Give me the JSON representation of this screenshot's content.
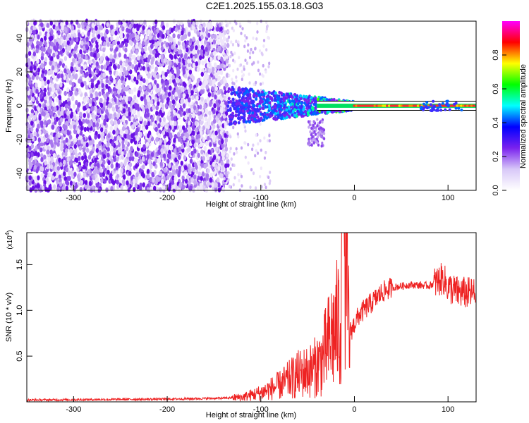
{
  "title": "C2E1.2025.155.03.18.G03",
  "colors": {
    "snr_line": "#ee2222",
    "spectrum_dot": "#7a22ee",
    "center_line": "#000000",
    "colorbar_stops": [
      "#ffffff",
      "#d8c8f8",
      "#7a22ee",
      "#0000ff",
      "#00ffff",
      "#00ff00",
      "#ffff00",
      "#ff0000",
      "#ff00ff"
    ]
  },
  "chart_data": [
    {
      "type": "heatmap",
      "name": "spectrogram",
      "xlabel": "Height of straight line (km)",
      "ylabel": "Frequency (Hz)",
      "xlim": [
        -350,
        130
      ],
      "ylim": [
        -50,
        50
      ],
      "xticks": [
        -300,
        -200,
        -100,
        0,
        100
      ],
      "yticks": [
        -40,
        -20,
        0,
        20,
        40
      ],
      "colorbar_label": "Normalized spectral amplitude",
      "colorbar_ticks": [
        "0.0",
        "0.2",
        "0.4",
        "0.6",
        "0.8"
      ],
      "colorbar_range": [
        0,
        1
      ],
      "grid": false
    },
    {
      "type": "line",
      "name": "snr",
      "xlabel": "Height of straight line (km)",
      "ylabel": "SNR (10 * v/v)",
      "exponent_label": "(x10",
      "exponent_power": "4",
      "exponent_close": ")",
      "xlim": [
        -350,
        130
      ],
      "ylim": [
        0,
        1.85
      ],
      "xticks": [
        -300,
        -200,
        -100,
        0,
        100
      ],
      "yticks": [
        0.5,
        1.0,
        1.5
      ],
      "ytick_labels": [
        "0.5",
        "1.0",
        "1.5"
      ],
      "grid": false,
      "series": [
        {
          "x": [
            -350,
            -200,
            -140,
            -120,
            -100,
            -80,
            -60,
            -45,
            -35,
            -25,
            -15,
            -12,
            -5,
            0,
            5,
            15,
            25,
            30,
            40,
            60,
            80,
            95,
            100,
            110,
            130
          ],
          "y": [
            0.02,
            0.03,
            0.04,
            0.05,
            0.1,
            0.18,
            0.3,
            0.35,
            0.45,
            0.7,
            0.9,
            1.85,
            0.75,
            0.85,
            0.95,
            1.05,
            1.15,
            1.2,
            1.25,
            1.28,
            1.27,
            1.35,
            1.25,
            1.2,
            1.18
          ]
        }
      ]
    }
  ]
}
